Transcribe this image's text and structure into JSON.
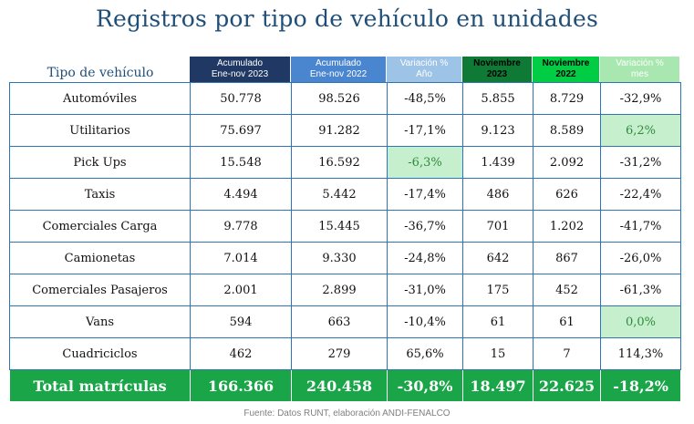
{
  "title": "Registros por tipo de vehículo en unidades",
  "row_header_label": "Tipo de vehículo",
  "columns": [
    {
      "line1": "Acumulado",
      "line2": "Ene-nov 2023",
      "bg": "#1f3864",
      "fg": "#ffffff"
    },
    {
      "line1": "Acumulado",
      "line2": "Ene-nov 2022",
      "bg": "#4a86cf",
      "fg": "#ffffff"
    },
    {
      "line1": "Variación %",
      "line2": "Año",
      "bg": "#9dc3e6",
      "fg": "#ffffff"
    },
    {
      "line1": "Noviembre",
      "line2": "2023",
      "bg": "#0e7a35",
      "fg": "#000000"
    },
    {
      "line1": "Noviembre",
      "line2": "2022",
      "bg": "#00cc44",
      "fg": "#000000"
    },
    {
      "line1": "Variación %",
      "line2": "mes",
      "bg": "#a9e7b0",
      "fg": "#ffffff"
    }
  ],
  "rows": [
    {
      "name": "Automóviles",
      "values": [
        "50.778",
        "98.526",
        "-48,5%",
        "5.855",
        "8.729",
        "-32,9%"
      ]
    },
    {
      "name": "Utilitarios",
      "values": [
        "75.697",
        "91.282",
        "-17,1%",
        "9.123",
        "8.589",
        "6,2%"
      ]
    },
    {
      "name": "Pick Ups",
      "values": [
        "15.548",
        "16.592",
        "-6,3%",
        "1.439",
        "2.092",
        "-31,2%"
      ]
    },
    {
      "name": "Taxis",
      "values": [
        "4.494",
        "5.442",
        "-17,4%",
        "486",
        "626",
        "-22,4%"
      ]
    },
    {
      "name": "Comerciales Carga",
      "values": [
        "9.778",
        "15.445",
        "-36,7%",
        "701",
        "1.202",
        "-41,7%"
      ]
    },
    {
      "name": "Camionetas",
      "values": [
        "7.014",
        "9.330",
        "-24,8%",
        "642",
        "867",
        "-26,0%"
      ]
    },
    {
      "name": "Comerciales Pasajeros",
      "values": [
        "2.001",
        "2.899",
        "-31,0%",
        "175",
        "452",
        "-61,3%"
      ]
    },
    {
      "name": "Vans",
      "values": [
        "594",
        "663",
        "-10,4%",
        "61",
        "61",
        "0,0%"
      ]
    },
    {
      "name": "Cuadriciclos",
      "values": [
        "462",
        "279",
        "65,6%",
        "15",
        "7",
        "114,3%"
      ]
    }
  ],
  "total": {
    "name": "Total matrículas",
    "values": [
      "166.366",
      "240.458",
      "-30,8%",
      "18.497",
      "22.625",
      "-18,2%"
    ]
  },
  "highlight_color": "#c6efce",
  "source": "Fuente: Datos RUNT, elaboración ANDI-FENALCO"
}
